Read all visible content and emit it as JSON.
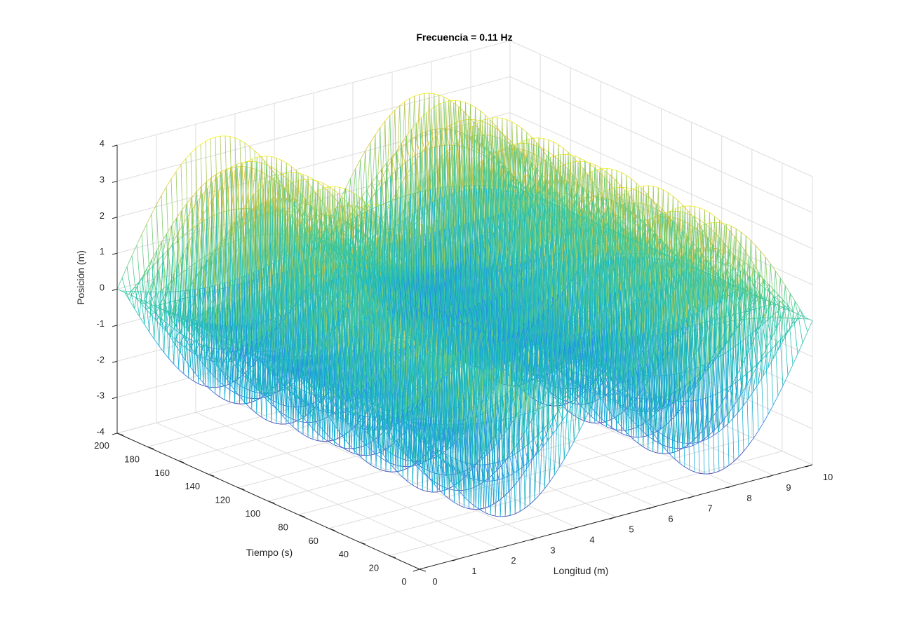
{
  "chart_data": {
    "type": "mesh3d",
    "title": "Frecuencia = 0.11 Hz",
    "xlabel": "Longitud (m)",
    "ylabel": "Tiempo (s)",
    "zlabel": "Posición (m)",
    "xlim": [
      0,
      10
    ],
    "ylim": [
      0,
      200
    ],
    "zlim": [
      -4,
      4
    ],
    "x_ticks": [
      0,
      1,
      2,
      3,
      4,
      5,
      6,
      7,
      8,
      9,
      10
    ],
    "y_ticks": [
      0,
      20,
      40,
      60,
      80,
      100,
      120,
      140,
      160,
      180,
      200
    ],
    "z_ticks": [
      -4,
      -3,
      -2,
      -1,
      0,
      1,
      2,
      3,
      4
    ],
    "grid": true,
    "colormap": "parula",
    "colors": [
      "#3e26a8",
      "#2a7fec",
      "#14b4d0",
      "#33c7a0",
      "#96cd63",
      "#e8bd3c",
      "#f9fb15"
    ],
    "surface": {
      "description_of_shape": "standing wave pattern z = 3.5*sin(pi*x/5)*cos(2*pi*0.11*t) sampled on a 0..10 m by 0..200 s mesh",
      "peak_amplitude": 3.5,
      "frequency_hz": 0.11,
      "x_samples": 81,
      "t_samples": 81
    }
  }
}
